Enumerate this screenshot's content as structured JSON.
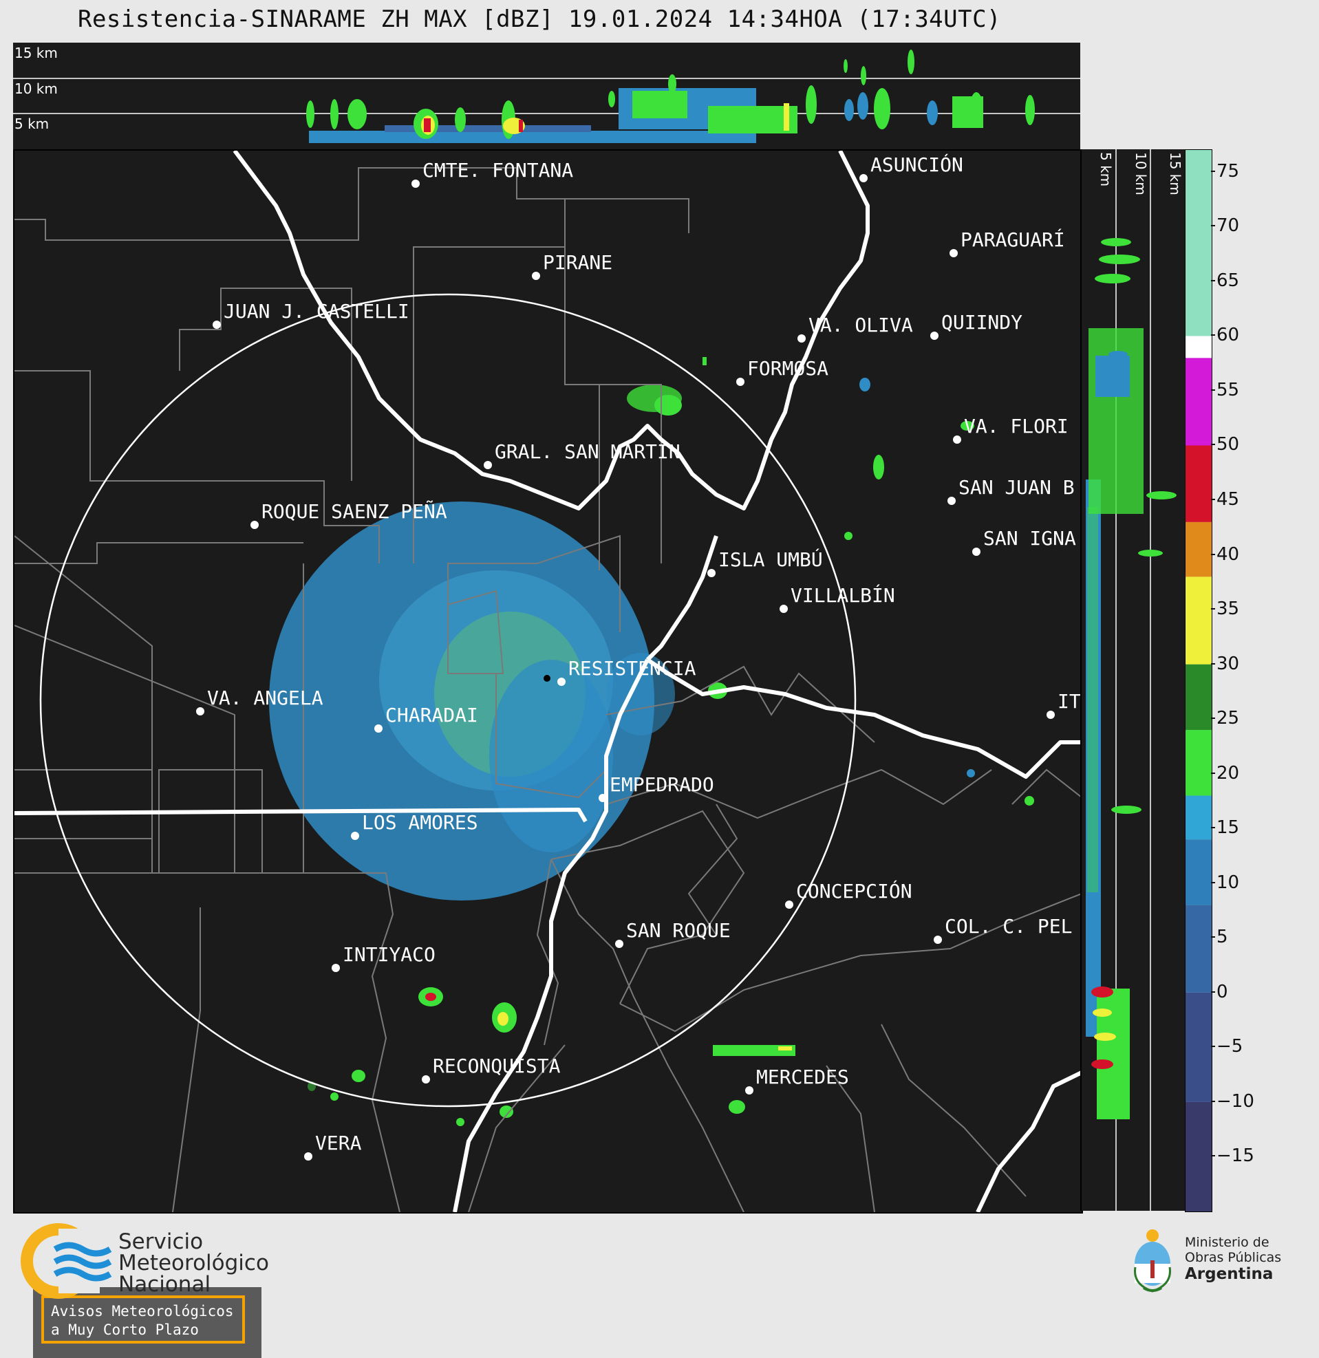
{
  "header": {
    "title": "Resistencia-SINARAME ZH MAX [dBZ] 19.01.2024 14:34HOA (17:34UTC)"
  },
  "top_panel": {
    "altitude_labels": [
      "15 km",
      "10 km",
      "5 km"
    ]
  },
  "side_panel": {
    "altitude_labels": [
      "5 km",
      "10 km",
      "15 km"
    ]
  },
  "map": {
    "radar_site": "RESISTENCIA",
    "cities": [
      {
        "name": "CMTE. FONTANA"
      },
      {
        "name": "ASUNCIÓN"
      },
      {
        "name": "PARAGUARÍ"
      },
      {
        "name": "PIRANE"
      },
      {
        "name": "JUAN J. CASTELLI"
      },
      {
        "name": "VA. OLIVA"
      },
      {
        "name": "QUIINDY"
      },
      {
        "name": "FORMOSA"
      },
      {
        "name": "VA. FLORI"
      },
      {
        "name": "GRAL. SAN MARTIN"
      },
      {
        "name": "SAN JUAN B"
      },
      {
        "name": "ROQUE SAENZ PEÑA"
      },
      {
        "name": "SAN IGNA"
      },
      {
        "name": "ISLA UMBÚ"
      },
      {
        "name": "VILLALBÍN"
      },
      {
        "name": "RESISTENCIA"
      },
      {
        "name": "VA. ANGELA"
      },
      {
        "name": "CHARADAI"
      },
      {
        "name": "IT"
      },
      {
        "name": "EMPEDRADO"
      },
      {
        "name": "LOS AMORES"
      },
      {
        "name": "CONCEPCIÓN"
      },
      {
        "name": "SAN ROQUE"
      },
      {
        "name": "COL. C. PEL"
      },
      {
        "name": "INTIYACO"
      },
      {
        "name": "RECONQUISTA"
      },
      {
        "name": "MERCEDES"
      },
      {
        "name": "VERA"
      }
    ]
  },
  "colorbar": {
    "unit": "dBZ",
    "ticks": [
      "75",
      "70",
      "65",
      "60",
      "55",
      "50",
      "45",
      "40",
      "35",
      "30",
      "25",
      "20",
      "15",
      "10",
      "5",
      "0",
      "−5",
      "−10",
      "−15"
    ],
    "colors": {
      "low": "#3a3a6a",
      "blue": "#2f8cc4",
      "green": "#3ee03a",
      "yellow": "#eef03a",
      "orange": "#e08a1c",
      "red": "#d4122a",
      "magenta": "#d21ad8",
      "white": "#ffffff",
      "teal": "#8ee0c0"
    }
  },
  "notice": {
    "line1": "Avisos Meteorológicos",
    "line2": "a Muy Corto Plazo"
  },
  "footer": {
    "smn": [
      "Servicio",
      "Meteorológico",
      "Nacional"
    ],
    "ministry": [
      "Ministerio de",
      "Obras Públicas",
      "Argentina"
    ]
  }
}
